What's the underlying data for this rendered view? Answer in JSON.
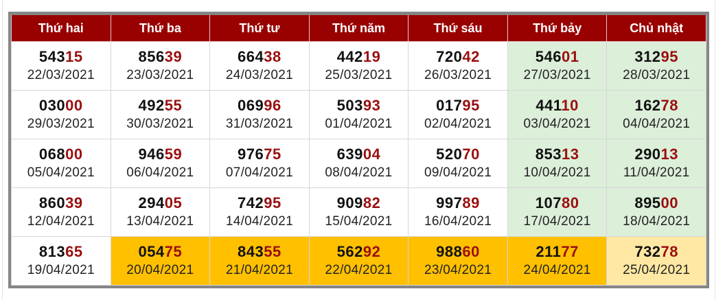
{
  "colors": {
    "header": "#990000",
    "weekend": "#dcefd9",
    "highlight": "#ffc000",
    "today": "#ffe8a3",
    "tail": "#9a0f0f"
  },
  "headers": [
    "Thứ hai",
    "Thứ ba",
    "Thứ tư",
    "Thứ năm",
    "Thứ sáu",
    "Thứ bảy",
    "Chủ nhật"
  ],
  "rows": [
    [
      {
        "head": "543",
        "tail": "15",
        "date": "22/03/2021"
      },
      {
        "head": "856",
        "tail": "39",
        "date": "23/03/2021"
      },
      {
        "head": "664",
        "tail": "38",
        "date": "24/03/2021"
      },
      {
        "head": "442",
        "tail": "19",
        "date": "25/03/2021"
      },
      {
        "head": "720",
        "tail": "42",
        "date": "26/03/2021"
      },
      {
        "head": "546",
        "tail": "01",
        "date": "27/03/2021",
        "style": "wk"
      },
      {
        "head": "312",
        "tail": "95",
        "date": "28/03/2021",
        "style": "wk"
      }
    ],
    [
      {
        "head": "030",
        "tail": "00",
        "date": "29/03/2021"
      },
      {
        "head": "492",
        "tail": "55",
        "date": "30/03/2021"
      },
      {
        "head": "069",
        "tail": "96",
        "date": "31/03/2021"
      },
      {
        "head": "503",
        "tail": "93",
        "date": "01/04/2021"
      },
      {
        "head": "017",
        "tail": "95",
        "date": "02/04/2021"
      },
      {
        "head": "441",
        "tail": "10",
        "date": "03/04/2021",
        "style": "wk"
      },
      {
        "head": "162",
        "tail": "78",
        "date": "04/04/2021",
        "style": "wk"
      }
    ],
    [
      {
        "head": "068",
        "tail": "00",
        "date": "05/04/2021"
      },
      {
        "head": "946",
        "tail": "59",
        "date": "06/04/2021"
      },
      {
        "head": "976",
        "tail": "75",
        "date": "07/04/2021"
      },
      {
        "head": "639",
        "tail": "04",
        "date": "08/04/2021"
      },
      {
        "head": "520",
        "tail": "70",
        "date": "09/04/2021"
      },
      {
        "head": "853",
        "tail": "13",
        "date": "10/04/2021",
        "style": "wk"
      },
      {
        "head": "290",
        "tail": "13",
        "date": "11/04/2021",
        "style": "wk"
      }
    ],
    [
      {
        "head": "860",
        "tail": "39",
        "date": "12/04/2021"
      },
      {
        "head": "294",
        "tail": "05",
        "date": "13/04/2021"
      },
      {
        "head": "742",
        "tail": "95",
        "date": "14/04/2021"
      },
      {
        "head": "909",
        "tail": "82",
        "date": "15/04/2021"
      },
      {
        "head": "997",
        "tail": "89",
        "date": "16/04/2021"
      },
      {
        "head": "107",
        "tail": "80",
        "date": "17/04/2021",
        "style": "wk"
      },
      {
        "head": "895",
        "tail": "00",
        "date": "18/04/2021",
        "style": "wk"
      }
    ],
    [
      {
        "head": "813",
        "tail": "65",
        "date": "19/04/2021"
      },
      {
        "head": "054",
        "tail": "75",
        "date": "20/04/2021",
        "style": "hi"
      },
      {
        "head": "843",
        "tail": "55",
        "date": "21/04/2021",
        "style": "hi"
      },
      {
        "head": "562",
        "tail": "92",
        "date": "22/04/2021",
        "style": "hi"
      },
      {
        "head": "988",
        "tail": "60",
        "date": "23/04/2021",
        "style": "hi"
      },
      {
        "head": "211",
        "tail": "77",
        "date": "24/04/2021",
        "style": "hi"
      },
      {
        "head": "732",
        "tail": "78",
        "date": "25/04/2021",
        "style": "today"
      }
    ]
  ]
}
